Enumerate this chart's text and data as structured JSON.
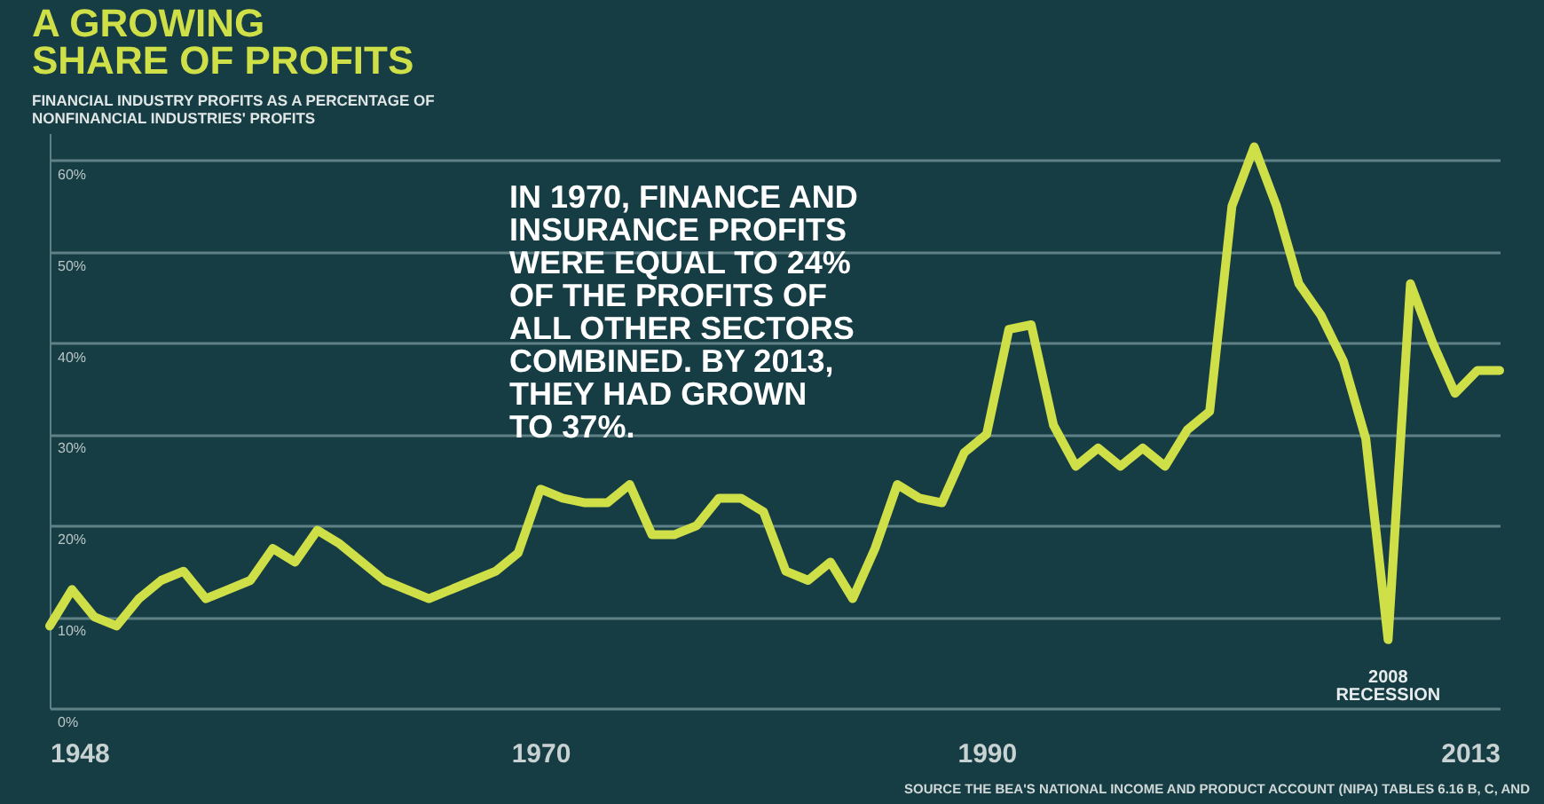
{
  "chart_data": {
    "type": "line",
    "title": "A GROWING\nSHARE OF PROFITS",
    "subtitle": "FINANCIAL INDUSTRY PROFITS AS A PERCENTAGE OF\nNONFINANCIAL INDUSTRIES' PROFITS",
    "x": [
      1948,
      1949,
      1950,
      1951,
      1952,
      1953,
      1954,
      1955,
      1956,
      1957,
      1958,
      1959,
      1960,
      1961,
      1962,
      1963,
      1964,
      1965,
      1966,
      1967,
      1968,
      1969,
      1970,
      1971,
      1972,
      1973,
      1974,
      1975,
      1976,
      1977,
      1978,
      1979,
      1980,
      1981,
      1982,
      1983,
      1984,
      1985,
      1986,
      1987,
      1988,
      1989,
      1990,
      1991,
      1992,
      1993,
      1994,
      1995,
      1996,
      1997,
      1998,
      1999,
      2000,
      2001,
      2002,
      2003,
      2004,
      2005,
      2006,
      2007,
      2008,
      2009,
      2010,
      2011,
      2012,
      2013
    ],
    "values": [
      9,
      13,
      10,
      9,
      12,
      14,
      15,
      12,
      13,
      14,
      17.5,
      16,
      19.5,
      18,
      16,
      14,
      13,
      12,
      13,
      14,
      15,
      17,
      24,
      23,
      22.5,
      22.5,
      24.5,
      19,
      19,
      20,
      23,
      23,
      21.5,
      15,
      14,
      16,
      12,
      17.5,
      24.5,
      23,
      22.5,
      28,
      30,
      41.5,
      42,
      31,
      26.5,
      28.5,
      26.5,
      28.5,
      26.5,
      30.5,
      32.5,
      55,
      61.5,
      55,
      46.5,
      43,
      38,
      29.5,
      7.5,
      46.5,
      40,
      34.5,
      37,
      37
    ],
    "color": "#cfdf48",
    "xlim": [
      1948,
      2013
    ],
    "xticks": [
      1948,
      1970,
      1990,
      2013
    ],
    "ylim": [
      0,
      63
    ],
    "yticks": [
      {
        "value": 0,
        "label": "0%"
      },
      {
        "value": 10,
        "label": "10%"
      },
      {
        "value": 20,
        "label": "20%"
      },
      {
        "value": 30,
        "label": "30%"
      },
      {
        "value": 40,
        "label": "40%"
      },
      {
        "value": 50,
        "label": "50%"
      },
      {
        "value": 60,
        "label": "60%"
      }
    ],
    "grid": "y",
    "annotations": [
      "IN 1970, FINANCE AND\nINSURANCE PROFITS\nWERE EQUAL TO 24%\nOF THE PROFITS OF\nALL OTHER SECTORS\nCOMBINED. BY 2013,\nTHEY HAD GROWN\nTO 37%.",
      {
        "text": "2008 RECESSION",
        "x": 2008,
        "y": 7.5
      },
      "SOURCE  THE BEA'S NATIONAL INCOME AND PRODUCT ACCOUNT (NIPA) TABLES 6.16 B, C, AND"
    ]
  }
}
